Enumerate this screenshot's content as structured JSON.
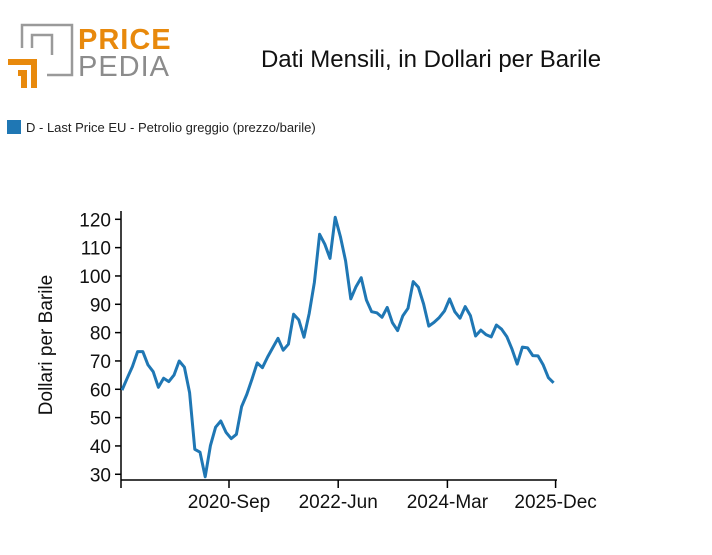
{
  "logo": {
    "line1": "PRICE",
    "line2": "PEDIA"
  },
  "colors": {
    "series": "#1f77b4",
    "logo_orange": "#e8890c",
    "logo_grey": "#9a9a9a"
  },
  "chart_data": {
    "type": "line",
    "title": "Dati Mensili, in Dollari per Barile",
    "xlabel": "",
    "ylabel": "Dollari per Barile",
    "ylim": [
      27,
      122
    ],
    "yticks": [
      30,
      40,
      50,
      60,
      70,
      80,
      90,
      100,
      110,
      120
    ],
    "x_start": "2019-01",
    "x_end": "2025-12",
    "xticks": [
      {
        "index": 20,
        "label": "2020-Sep"
      },
      {
        "index": 41,
        "label": "2022-Jun"
      },
      {
        "index": 62,
        "label": "2024-Mar"
      },
      {
        "index": 83,
        "label": "2025-Dec"
      }
    ],
    "legend": {
      "position": "top-left",
      "entries": [
        "D - Last Price EU - Petrolio greggio (prezzo/barile)"
      ]
    },
    "series": [
      {
        "name": "D - Last Price EU - Petrolio greggio (prezzo/barile)",
        "values": [
          59.7,
          63.9,
          68.0,
          73.3,
          73.3,
          68.6,
          66.2,
          60.7,
          63.9,
          62.7,
          65.0,
          70.0,
          67.8,
          58.8,
          38.8,
          37.8,
          29.1,
          40.1,
          46.6,
          48.8,
          44.8,
          42.6,
          44.1,
          53.9,
          58.2,
          63.6,
          69.3,
          67.6,
          71.4,
          74.7,
          78.0,
          73.8,
          75.9,
          86.5,
          84.5,
          78.4,
          86.8,
          97.8,
          114.7,
          111.2,
          106.2,
          120.7,
          113.9,
          105.3,
          91.9,
          96.2,
          99.4,
          91.5,
          87.4,
          87.0,
          85.4,
          88.9,
          83.5,
          80.7,
          85.9,
          88.6,
          98.0,
          96.0,
          90.1,
          82.3,
          83.6,
          85.3,
          87.6,
          91.9,
          87.4,
          85.1,
          89.2,
          86.0,
          78.8,
          80.9,
          79.3,
          78.5,
          82.7,
          81.2,
          78.6,
          74.2,
          68.9,
          74.9,
          74.6,
          71.9,
          71.8,
          68.6,
          64.1,
          62.3
        ]
      }
    ]
  }
}
